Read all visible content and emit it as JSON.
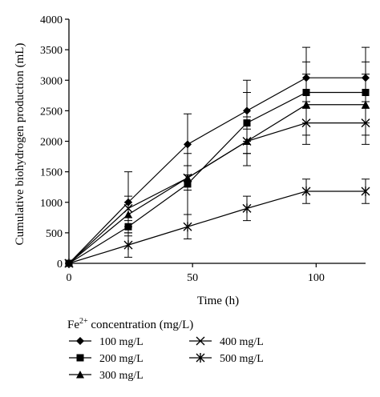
{
  "chart_data": {
    "type": "line",
    "title": "",
    "xlabel": "Time (h)",
    "ylabel": "Cumulative biohydrogen production (mL)",
    "xlim": [
      0,
      120
    ],
    "ylim": [
      0,
      4000
    ],
    "x_ticks": [
      0,
      50,
      100
    ],
    "y_ticks": [
      0,
      500,
      1000,
      1500,
      2000,
      2500,
      3000,
      3500,
      4000
    ],
    "x": [
      0,
      24,
      48,
      72,
      96,
      120
    ],
    "grid": false,
    "legend_position": "bottom",
    "legend_title": {
      "prefix": "Fe",
      "superscript": "2+",
      "suffix": " concentration (mg/L)"
    },
    "series": [
      {
        "name": "100 mg/L",
        "marker": "diamond",
        "values": [
          0,
          1000,
          1950,
          2500,
          3040,
          3040
        ],
        "errors": [
          0,
          500,
          500,
          500,
          500,
          500
        ]
      },
      {
        "name": "200 mg/L",
        "marker": "square",
        "values": [
          0,
          600,
          1300,
          2300,
          2800,
          2800
        ],
        "errors": [
          0,
          150,
          500,
          500,
          500,
          500
        ]
      },
      {
        "name": "300 mg/L",
        "marker": "triangle",
        "values": [
          0,
          800,
          1400,
          2000,
          2600,
          2600
        ],
        "errors": [
          0,
          200,
          200,
          400,
          500,
          500
        ]
      },
      {
        "name": "400 mg/L",
        "marker": "x",
        "values": [
          0,
          900,
          1400,
          2000,
          2300,
          2300
        ],
        "errors": [
          0,
          200,
          200,
          200,
          350,
          350
        ]
      },
      {
        "name": "500 mg/L",
        "marker": "asterisk",
        "values": [
          0,
          300,
          600,
          900,
          1180,
          1180
        ],
        "errors": [
          0,
          200,
          200,
          200,
          200,
          200
        ]
      }
    ]
  }
}
